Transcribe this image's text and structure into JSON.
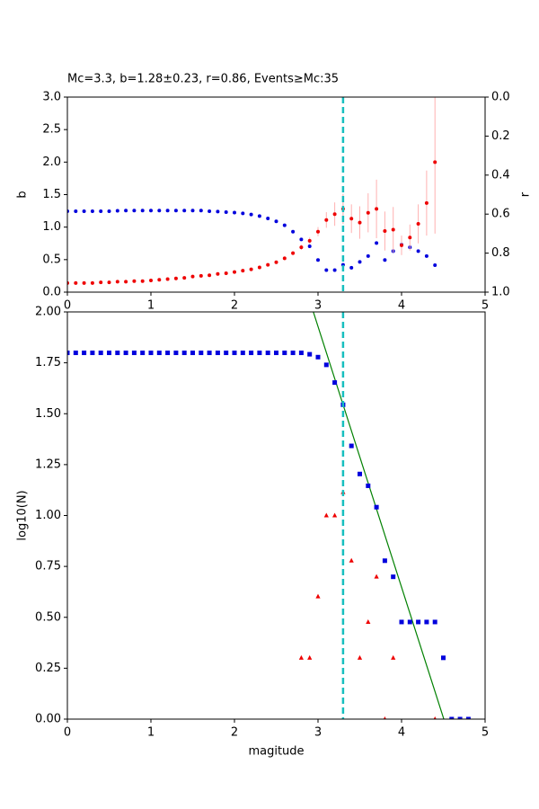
{
  "chart_data": [
    {
      "type": "scatter",
      "title": "Mc=3.3, b=1.28±0.23, r=0.86, Events≥Mc:35",
      "y_label": "b",
      "y2_label": "r",
      "xlim": [
        0,
        5
      ],
      "xticks": [
        0,
        1,
        2,
        3,
        4,
        5
      ],
      "ylim": [
        0,
        3
      ],
      "yticks": [
        {
          "value": 0,
          "label": "0.0"
        },
        {
          "value": 0.5,
          "label": "0.5"
        },
        {
          "value": 1,
          "label": "1.0"
        },
        {
          "value": 1.5,
          "label": "1.5"
        },
        {
          "value": 2,
          "label": "2.0"
        },
        {
          "value": 2.5,
          "label": "2.5"
        },
        {
          "value": 3,
          "label": "3.0"
        }
      ],
      "y2lim": [
        0,
        1
      ],
      "y2_inverted": true,
      "y2ticks": [
        {
          "value": 0,
          "label": "0.0"
        },
        {
          "value": 0.2,
          "label": "0.2"
        },
        {
          "value": 0.4,
          "label": "0.4"
        },
        {
          "value": 0.6,
          "label": "0.6"
        },
        {
          "value": 0.8,
          "label": "0.8"
        },
        {
          "value": 1,
          "label": "1.0"
        }
      ],
      "mc_line": 3.3,
      "mc_color": "#17bfbf",
      "series": [
        {
          "color": "#0000dd",
          "marker": "circle",
          "axis": "y2",
          "x": [
            0,
            0.1,
            0.2,
            0.3,
            0.4,
            0.5,
            0.6,
            0.7,
            0.8,
            0.9,
            1,
            1.1,
            1.2,
            1.3,
            1.4,
            1.5,
            1.6,
            1.7,
            1.8,
            1.9,
            2,
            2.1,
            2.2,
            2.3,
            2.4,
            2.5,
            2.6,
            2.7,
            2.8,
            2.9,
            3,
            3.1,
            3.2,
            3.3,
            3.4,
            3.5,
            3.6,
            3.7,
            3.8,
            3.9,
            4,
            4.1,
            4.2,
            4.3,
            4.4
          ],
          "values": [
            0.585,
            0.585,
            0.585,
            0.585,
            0.585,
            0.585,
            0.583,
            0.582,
            0.582,
            0.582,
            0.582,
            0.582,
            0.582,
            0.582,
            0.582,
            0.582,
            0.582,
            0.585,
            0.587,
            0.59,
            0.592,
            0.596,
            0.602,
            0.61,
            0.622,
            0.637,
            0.657,
            0.69,
            0.73,
            0.765,
            0.835,
            0.887,
            0.887,
            0.86,
            0.875,
            0.845,
            0.815,
            0.748,
            0.835,
            0.79,
            0.757,
            0.77,
            0.79,
            0.815,
            0.862
          ]
        },
        {
          "color": "#ee0000",
          "marker": "circle",
          "error_color": "#ffb0b0",
          "x": [
            0,
            0.1,
            0.2,
            0.3,
            0.4,
            0.5,
            0.6,
            0.7,
            0.8,
            0.9,
            1,
            1.1,
            1.2,
            1.3,
            1.4,
            1.5,
            1.6,
            1.7,
            1.8,
            1.9,
            2,
            2.1,
            2.2,
            2.3,
            2.4,
            2.5,
            2.6,
            2.7,
            2.8,
            2.9,
            3,
            3.1,
            3.2,
            3.3,
            3.4,
            3.5,
            3.6,
            3.7,
            3.8,
            3.9,
            4,
            4.1,
            4.2,
            4.3,
            4.4
          ],
          "values": [
            0.14,
            0.14,
            0.14,
            0.14,
            0.15,
            0.15,
            0.16,
            0.16,
            0.17,
            0.17,
            0.18,
            0.19,
            0.2,
            0.21,
            0.22,
            0.24,
            0.25,
            0.26,
            0.28,
            0.29,
            0.31,
            0.33,
            0.35,
            0.38,
            0.42,
            0.46,
            0.52,
            0.6,
            0.69,
            0.79,
            0.93,
            1.11,
            1.2,
            1.28,
            1.13,
            1.07,
            1.22,
            1.28,
            0.94,
            0.96,
            0.72,
            0.84,
            1.05,
            1.37,
            2.0
          ],
          "errors": [
            0.01,
            0.01,
            0.01,
            0.01,
            0.01,
            0.01,
            0.01,
            0.01,
            0.01,
            0.01,
            0.01,
            0.01,
            0.01,
            0.01,
            0.01,
            0.01,
            0.01,
            0.01,
            0.01,
            0.01,
            0.01,
            0.01,
            0.01,
            0.02,
            0.02,
            0.02,
            0.03,
            0.03,
            0.04,
            0.05,
            0.07,
            0.12,
            0.18,
            0.23,
            0.22,
            0.25,
            0.3,
            0.45,
            0.3,
            0.35,
            0.15,
            0.2,
            0.3,
            0.5,
            1.1
          ]
        }
      ]
    },
    {
      "type": "scatter",
      "x_label": "magitude",
      "y_label": "log10(N)",
      "xlim": [
        0,
        5
      ],
      "xticks": [
        0,
        1,
        2,
        3,
        4,
        5
      ],
      "ylim": [
        0,
        2
      ],
      "yticks": [
        {
          "value": 0,
          "label": "0.00"
        },
        {
          "value": 0.25,
          "label": "0.25"
        },
        {
          "value": 0.5,
          "label": "0.50"
        },
        {
          "value": 0.75,
          "label": "0.75"
        },
        {
          "value": 1,
          "label": "1.00"
        },
        {
          "value": 1.25,
          "label": "1.25"
        },
        {
          "value": 1.5,
          "label": "1.50"
        },
        {
          "value": 1.75,
          "label": "1.75"
        },
        {
          "value": 2,
          "label": "2.00"
        }
      ],
      "mc_line": 3.3,
      "mc_color": "#17bfbf",
      "series": [
        {
          "color": "#008000",
          "marker": "line",
          "x": [
            2.944,
            4.506
          ],
          "values": [
            2,
            0
          ]
        },
        {
          "color": "#0000dd",
          "marker": "square",
          "x": [
            0,
            0.1,
            0.2,
            0.3,
            0.4,
            0.5,
            0.6,
            0.7,
            0.8,
            0.9,
            1,
            1.1,
            1.2,
            1.3,
            1.4,
            1.5,
            1.6,
            1.7,
            1.8,
            1.9,
            2,
            2.1,
            2.2,
            2.3,
            2.4,
            2.5,
            2.6,
            2.7,
            2.8,
            2.9,
            3,
            3.1,
            3.2,
            3.3,
            3.4,
            3.5,
            3.6,
            3.7,
            3.8,
            3.9,
            4,
            4.1,
            4.2,
            4.3,
            4.4,
            4.5,
            4.6,
            4.7,
            4.8
          ],
          "values": [
            1.799,
            1.799,
            1.799,
            1.799,
            1.799,
            1.799,
            1.799,
            1.799,
            1.799,
            1.799,
            1.799,
            1.799,
            1.799,
            1.799,
            1.799,
            1.799,
            1.799,
            1.799,
            1.799,
            1.799,
            1.799,
            1.799,
            1.799,
            1.799,
            1.799,
            1.799,
            1.799,
            1.799,
            1.799,
            1.792,
            1.778,
            1.74,
            1.653,
            1.544,
            1.342,
            1.204,
            1.146,
            1.041,
            0.778,
            0.699,
            0.477,
            0.477,
            0.477,
            0.477,
            0.477,
            0.301,
            0,
            0,
            0
          ]
        },
        {
          "color": "#ee0000",
          "marker": "triangle",
          "x": [
            2.8,
            2.9,
            3.0,
            3.1,
            3.2,
            3.3,
            3.4,
            3.5,
            3.6,
            3.7,
            3.8,
            3.9,
            4.4
          ],
          "values": [
            0.301,
            0.301,
            0.602,
            1.0,
            1.0,
            1.114,
            0.778,
            0.301,
            0.477,
            0.699,
            0,
            0.301,
            0
          ]
        }
      ]
    }
  ]
}
